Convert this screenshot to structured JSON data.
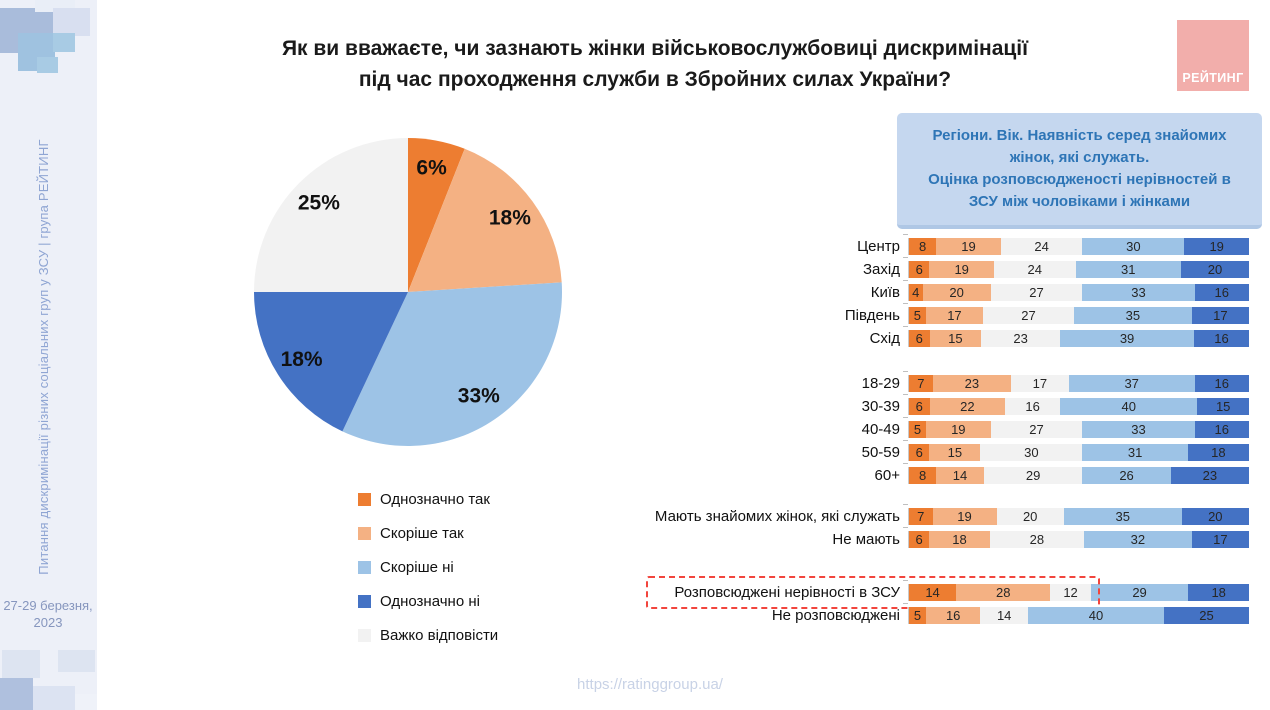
{
  "page": {
    "background": "#FFFFFF"
  },
  "sidebar": {
    "vertical_text": "Питання дискримінації різних соціальних груп у ЗСУ | група РЕЙТИНГ",
    "date": "27-29 березня, 2023",
    "background": "#EDF0F8",
    "text_color": "#8FA5D3"
  },
  "header": {
    "title_line1": "Як ви вважаєте, чи зазнають жінки військовослужбовиці дискримінації",
    "title_line2": "під час проходження служби в Збройних силах України?"
  },
  "logo": {
    "label": "РЕЙТИНГ",
    "background": "#F2AEAB",
    "text_color": "#FFFFFF"
  },
  "note_box": {
    "line1": "Регіони. Вік. Наявність серед знайомих жінок, які служать.",
    "line2": "Оцінка розповсюдженості нерівностей в ЗСУ між чоловіками і жінками",
    "background": "#C5D7EF",
    "border_bottom": "#AFC7E5",
    "text_color": "#2E75B6"
  },
  "legend": {
    "items": [
      {
        "label": "Однозначно так",
        "color": "#ED7D31"
      },
      {
        "label": "Скоріше так",
        "color": "#F4B183"
      },
      {
        "label": "Скоріше ні",
        "color": "#9DC3E6"
      },
      {
        "label": "Однозначно ні",
        "color": "#4472C4"
      },
      {
        "label": "Важко відповісти",
        "color": "#F2F2F2"
      }
    ]
  },
  "footer": {
    "url": "https://ratinggroup.ua/"
  },
  "chart_data": [
    {
      "type": "pie",
      "labels": [
        "Однозначно так",
        "Скоріше так",
        "Скоріше ні",
        "Однозначно ні",
        "Важко відповісти"
      ],
      "values": [
        6,
        18,
        33,
        18,
        25
      ],
      "value_labels": [
        "6%",
        "18%",
        "33%",
        "18%",
        "25%"
      ],
      "colors": [
        "#ED7D31",
        "#F4B183",
        "#9DC3E6",
        "#4472C4",
        "#F2F2F2"
      ],
      "start_angle_deg": 0,
      "direction": "clockwise",
      "label_color": "#111111",
      "legend_position": "below-left"
    },
    {
      "type": "bar",
      "orientation": "horizontal",
      "stacked": true,
      "unit": "percent",
      "axis_max": 100,
      "series": [
        "Однозначно так",
        "Скоріше так",
        "Важко відповісти",
        "Скоріше ні",
        "Однозначно ні"
      ],
      "series_colors": [
        "#ED7D31",
        "#F4B183",
        "#F2F2F2",
        "#9DC3E6",
        "#4472C4"
      ],
      "groups": [
        {
          "rows": [
            {
              "label": "Центр",
              "values": [
                8,
                19,
                24,
                30,
                19
              ]
            },
            {
              "label": "Захід",
              "values": [
                6,
                19,
                24,
                31,
                20
              ]
            },
            {
              "label": "Київ",
              "values": [
                4,
                20,
                27,
                33,
                16
              ]
            },
            {
              "label": "Південь",
              "values": [
                5,
                17,
                27,
                35,
                17
              ]
            },
            {
              "label": "Схід",
              "values": [
                6,
                15,
                23,
                39,
                16
              ]
            }
          ]
        },
        {
          "rows": [
            {
              "label": "18-29",
              "values": [
                7,
                23,
                17,
                37,
                16
              ]
            },
            {
              "label": "30-39",
              "values": [
                6,
                22,
                16,
                40,
                15
              ]
            },
            {
              "label": "40-49",
              "values": [
                5,
                19,
                27,
                33,
                16
              ]
            },
            {
              "label": "50-59",
              "values": [
                6,
                15,
                30,
                31,
                18
              ]
            },
            {
              "label": "60+",
              "values": [
                8,
                14,
                29,
                26,
                23
              ]
            }
          ]
        },
        {
          "rows": [
            {
              "label": "Мають знайомих жінок, які служать",
              "values": [
                7,
                19,
                20,
                35,
                20
              ]
            },
            {
              "label": "Не мають",
              "values": [
                6,
                18,
                28,
                32,
                17
              ]
            }
          ]
        },
        {
          "rows": [
            {
              "label": "Розповсюджені нерівності в ЗСУ",
              "values": [
                14,
                28,
                12,
                29,
                18
              ],
              "highlighted": true
            },
            {
              "label": "Не розповсюджені",
              "values": [
                5,
                16,
                14,
                40,
                25
              ]
            }
          ]
        }
      ],
      "highlight_color": "#F2453D"
    }
  ]
}
